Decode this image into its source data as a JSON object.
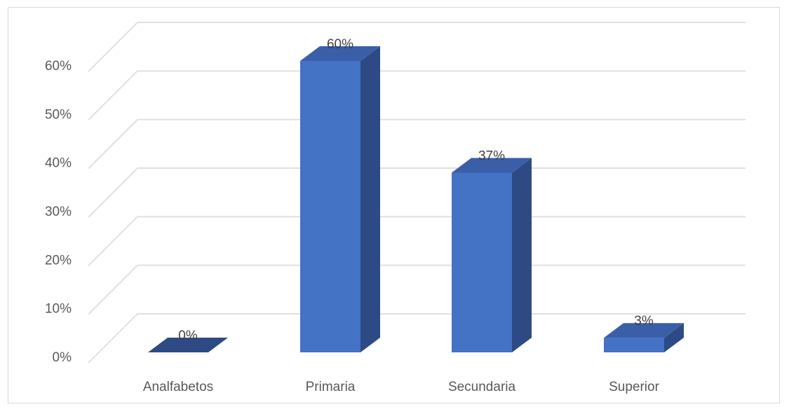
{
  "chart_data": {
    "type": "bar",
    "style": "3d-column",
    "categories": [
      "Analfabetos",
      "Primaria",
      "Secundaria",
      "Superior"
    ],
    "values": [
      0,
      60,
      37,
      3
    ],
    "data_labels": [
      "0%",
      "60%",
      "37%",
      "3%"
    ],
    "y_ticks": [
      0,
      10,
      20,
      30,
      40,
      50,
      60
    ],
    "y_tick_labels": [
      "0%",
      "10%",
      "20%",
      "30%",
      "40%",
      "50%",
      "60%"
    ],
    "ylim": [
      0,
      60
    ],
    "grid": true,
    "legend": "none",
    "title": "",
    "xlabel": "",
    "ylabel": ""
  },
  "colors": {
    "bar_front": "#4472c4",
    "bar_side": "#2e4a85",
    "bar_top": "#3a5fa8",
    "gridline": "#e0e0e0",
    "axis_text": "#595959"
  }
}
